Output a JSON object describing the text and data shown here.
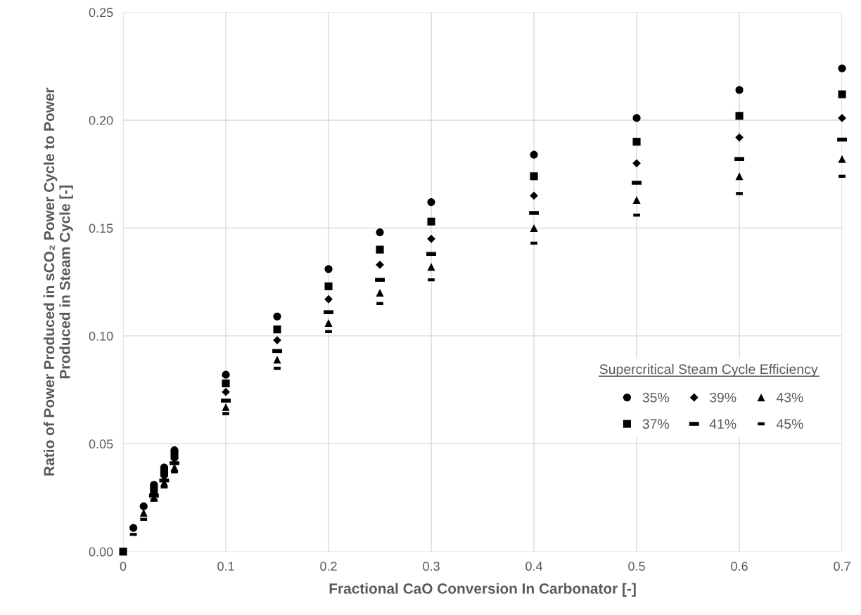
{
  "chart_data": {
    "type": "scatter",
    "xlabel": "Fractional CaO Conversion In Carbonator [-]",
    "ylabel": "Ratio of Power Produced in sCO₂ Power Cycle to Power\nProduced in Steam Cycle [-]",
    "legend_title": "Supercritical Steam Cycle Efficiency",
    "x": [
      0,
      0.01,
      0.02,
      0.03,
      0.04,
      0.05,
      0.1,
      0.15,
      0.2,
      0.25,
      0.3,
      0.4,
      0.5,
      0.6,
      0.7
    ],
    "series": [
      {
        "name": "35%",
        "color": "#000000",
        "marker": "circle",
        "values": [
          null,
          0.011,
          0.021,
          0.031,
          0.039,
          0.047,
          0.082,
          0.109,
          0.131,
          0.148,
          0.162,
          0.184,
          0.201,
          0.214,
          0.224
        ]
      },
      {
        "name": "37%",
        "color": "#000000",
        "marker": "square",
        "values": [
          0,
          null,
          null,
          0.029,
          0.037,
          0.045,
          0.078,
          0.103,
          0.123,
          0.14,
          0.153,
          0.174,
          0.19,
          0.202,
          0.212
        ]
      },
      {
        "name": "39%",
        "color": "#000000",
        "marker": "diamond",
        "values": [
          null,
          null,
          null,
          0.027,
          0.035,
          0.043,
          0.074,
          0.098,
          0.117,
          0.133,
          0.145,
          0.165,
          0.18,
          0.192,
          0.201
        ]
      },
      {
        "name": "41%",
        "color": "#000000",
        "values": [
          null,
          null,
          null,
          0.026,
          0.033,
          0.041,
          0.07,
          0.093,
          0.111,
          0.126,
          0.138,
          0.157,
          0.171,
          0.182,
          0.191
        ]
      },
      {
        "name": "43%",
        "color": "#000000",
        "marker": "triangle",
        "values": [
          null,
          null,
          0.018,
          0.025,
          0.032,
          0.039,
          0.067,
          0.089,
          0.106,
          0.12,
          0.132,
          0.15,
          0.163,
          0.174,
          0.182
        ]
      },
      {
        "name": "45%",
        "color": "#000000",
        "values": [
          null,
          0.008,
          0.015,
          0.024,
          0.03,
          0.037,
          0.064,
          0.085,
          0.102,
          0.115,
          0.126,
          0.143,
          0.156,
          0.166,
          0.174
        ]
      }
    ],
    "xlim": [
      0,
      0.7
    ],
    "xticks": [
      0,
      0.1,
      0.2,
      0.3,
      0.4,
      0.5,
      0.6,
      0.7
    ],
    "ylim": [
      0,
      0.25
    ],
    "yticks": [
      {
        "value": 0,
        "label": "0.00"
      },
      0.05,
      {
        "value": 0.1,
        "label": "0.10"
      },
      0.15,
      {
        "value": 0.2,
        "label": "0.20"
      },
      0.25
    ],
    "grid": true,
    "legend": "right"
  }
}
